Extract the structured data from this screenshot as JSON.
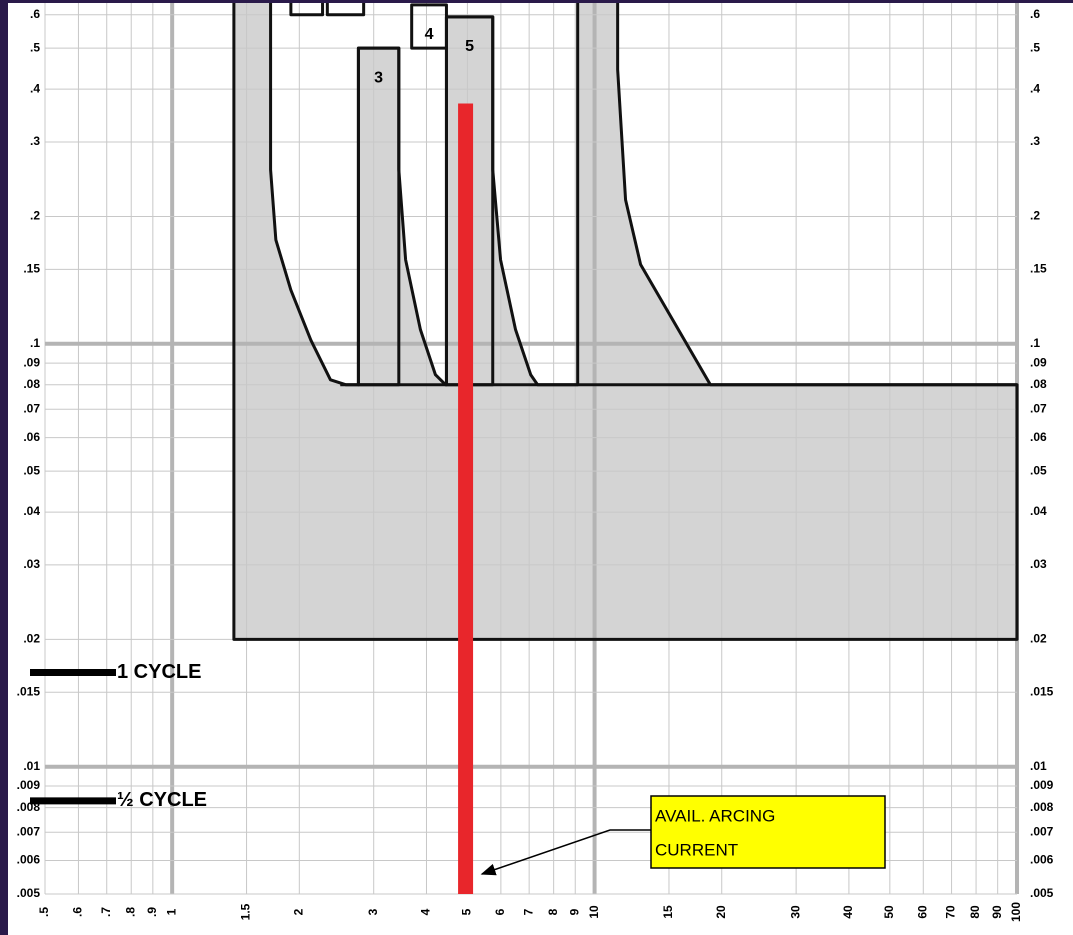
{
  "chart_data": {
    "type": "line",
    "xscale": "log",
    "yscale": "log",
    "grid": true,
    "xlim": [
      0.5,
      100
    ],
    "ylim": [
      0.005,
      0.65
    ],
    "xticks": [
      {
        "value": 0.5,
        "label": ".5"
      },
      {
        "value": 0.6,
        "label": ".6"
      },
      {
        "value": 0.7,
        "label": ".7"
      },
      {
        "value": 0.8,
        "label": ".8"
      },
      {
        "value": 0.9,
        "label": ".9"
      },
      1,
      1.5,
      2,
      3,
      4,
      5,
      6,
      7,
      8,
      9,
      10,
      15,
      20,
      30,
      40,
      50,
      60,
      70,
      80,
      90,
      100
    ],
    "yticks": [
      {
        "value": 0.6,
        "label": ".6"
      },
      {
        "value": 0.5,
        "label": ".5"
      },
      {
        "value": 0.4,
        "label": ".4"
      },
      {
        "value": 0.3,
        "label": ".3"
      },
      {
        "value": 0.2,
        "label": ".2"
      },
      {
        "value": 0.15,
        "label": ".15"
      },
      {
        "value": 0.1,
        "label": ".1"
      },
      {
        "value": 0.09,
        "label": ".09"
      },
      {
        "value": 0.08,
        "label": ".08"
      },
      {
        "value": 0.07,
        "label": ".07"
      },
      {
        "value": 0.06,
        "label": ".06"
      },
      {
        "value": 0.05,
        "label": ".05"
      },
      {
        "value": 0.04,
        "label": ".04"
      },
      {
        "value": 0.03,
        "label": ".03"
      },
      {
        "value": 0.02,
        "label": ".02"
      },
      {
        "value": 0.015,
        "label": ".015"
      },
      {
        "value": 0.01,
        "label": ".01"
      },
      {
        "value": 0.009,
        "label": ".009"
      },
      {
        "value": 0.008,
        "label": ".008"
      },
      {
        "value": 0.007,
        "label": ".007"
      },
      {
        "value": 0.006,
        "label": ".006"
      },
      {
        "value": 0.005,
        "label": ".005"
      }
    ],
    "shapes": [
      {
        "fill": "#d4d4d4",
        "x": [
          1.4,
          1.4,
          100,
          100,
          18.8,
          12.85,
          11.84,
          11.34,
          11.34
        ],
        "y": [
          0.65,
          0.02,
          0.02,
          0.08,
          0.08,
          0.154,
          0.219,
          0.445,
          0.65
        ]
      },
      {
        "fill": "#ffffff",
        "x": [
          1.71,
          1.71,
          1.76,
          1.91,
          2.13,
          2.37,
          2.58,
          2.76,
          2.76,
          3.44,
          3.44,
          3.57,
          3.87,
          4.2,
          4.44,
          4.46,
          4.46,
          5.74,
          5.74,
          5.99,
          6.5,
          7.06,
          7.33,
          9.12,
          9.12
        ],
        "y": [
          0.65,
          0.258,
          0.176,
          0.134,
          0.102,
          0.0822,
          0.08,
          0.08,
          0.5,
          0.5,
          0.258,
          0.158,
          0.108,
          0.0845,
          0.08,
          0.08,
          0.593,
          0.593,
          0.258,
          0.158,
          0.108,
          0.0845,
          0.08,
          0.08,
          0.65
        ]
      },
      {
        "fill": "none",
        "x": [
          2.5,
          100
        ],
        "y": [
          0.08,
          0.08
        ]
      },
      {
        "fill": "none",
        "label": "3",
        "x": [
          2.76,
          3.44,
          3.44,
          2.76
        ],
        "y": [
          0.5,
          0.5,
          0.08,
          0.08
        ]
      },
      {
        "fill": "#ffffff",
        "label": "4",
        "x": [
          3.69,
          4.46,
          4.46,
          3.69
        ],
        "y": [
          0.633,
          0.633,
          0.5,
          0.5
        ]
      },
      {
        "fill": "none",
        "label": "5",
        "x": [
          4.46,
          5.74,
          5.74,
          4.46
        ],
        "y": [
          0.593,
          0.593,
          0.08,
          0.08
        ]
      },
      {
        "fill": "#ffffff",
        "x": [
          1.91,
          2.27,
          2.27,
          1.91
        ],
        "y": [
          0.65,
          0.65,
          0.6,
          0.6
        ]
      },
      {
        "fill": "#ffffff",
        "x": [
          2.33,
          2.84,
          2.84,
          2.33
        ],
        "y": [
          0.65,
          0.65,
          0.6,
          0.6
        ]
      }
    ],
    "series": [
      {
        "color": "#e8262b",
        "x": [
          4.95,
          4.95
        ],
        "y": [
          0.37,
          0.005
        ]
      }
    ],
    "annotations": [
      {
        "text": "1 CYCLE",
        "y": 0.0167
      },
      {
        "text": "½ CYCLE",
        "y": 0.0083
      }
    ],
    "callout": [
      "AVAIL. ARCING",
      "CURRENT"
    ]
  }
}
